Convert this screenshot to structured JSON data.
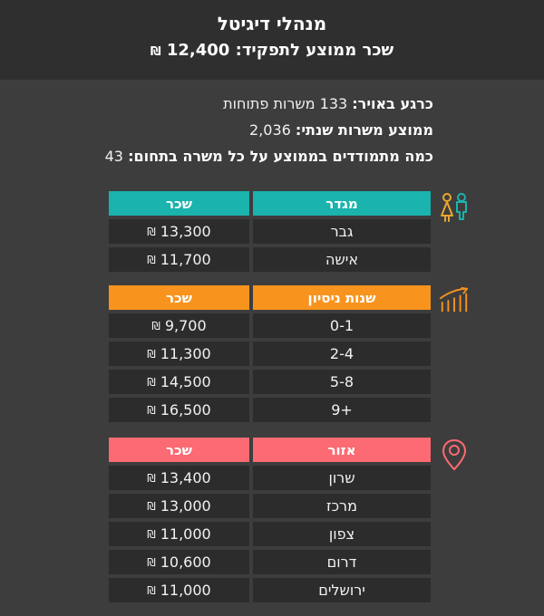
{
  "header": {
    "title": "מנהלי דיגיטל",
    "subtitle_label": "שכר ממוצע לתפקיד:",
    "subtitle_value": "12,400",
    "currency": "₪"
  },
  "stats": {
    "lines": [
      {
        "label": "כרגע באויר:",
        "value": "133 משרות פתוחות"
      },
      {
        "label": "ממוצע משרות שנתי:",
        "value": "2,036"
      },
      {
        "label": "כמה מתמודדים בממוצע על כל משרה בתחום:",
        "value": "43"
      }
    ]
  },
  "tables": [
    {
      "name": "salary-by-gender-table",
      "icon": "male-female-icon",
      "accent": "#1ab3ad",
      "col_category": "מגדר",
      "col_salary": "שכר",
      "rows": [
        {
          "category": "גבר",
          "salary": "13,300"
        },
        {
          "category": "אישה",
          "salary": "11,700"
        }
      ]
    },
    {
      "name": "salary-by-experience-table",
      "icon": "growth-chart-icon",
      "accent": "#f8941e",
      "col_category": "שנות ניסיון",
      "col_salary": "שכר",
      "rows": [
        {
          "category": "0-1",
          "salary": "9,700"
        },
        {
          "category": "2-4",
          "salary": "11,300"
        },
        {
          "category": "5-8",
          "salary": "14,500"
        },
        {
          "category": "9+",
          "salary": "16,500"
        }
      ]
    },
    {
      "name": "salary-by-region-table",
      "icon": "location-pin-icon",
      "accent": "#fc6a73",
      "col_category": "אזור",
      "col_salary": "שכר",
      "rows": [
        {
          "category": "שרון",
          "salary": "13,400"
        },
        {
          "category": "מרכז",
          "salary": "13,000"
        },
        {
          "category": "צפון",
          "salary": "11,000"
        },
        {
          "category": "דרום",
          "salary": "10,600"
        },
        {
          "category": "ירושלים",
          "salary": "11,000"
        }
      ]
    }
  ],
  "colors": {
    "top_band_bg": "#2f2f2f",
    "page_bg": "#3d3d3d",
    "cell_bg": "#2c2c2c",
    "teal_accent": "#1ab3ad",
    "orange_accent": "#f8941e",
    "pink_accent": "#fc6a73",
    "female_icon_color": "#e8a82e",
    "text_color": "#f2f2f2"
  },
  "chart_data": [
    {
      "type": "table",
      "title": "מגדר",
      "columns": [
        "מגדר",
        "שכר"
      ],
      "rows": [
        [
          "גבר",
          13300
        ],
        [
          "אישה",
          11700
        ]
      ],
      "currency": "ILS"
    },
    {
      "type": "table",
      "title": "שנות ניסיון",
      "columns": [
        "שנות ניסיון",
        "שכר"
      ],
      "rows": [
        [
          "0-1",
          9700
        ],
        [
          "2-4",
          11300
        ],
        [
          "5-8",
          14500
        ],
        [
          "9+",
          16500
        ]
      ],
      "currency": "ILS"
    },
    {
      "type": "table",
      "title": "אזור",
      "columns": [
        "אזור",
        "שכר"
      ],
      "rows": [
        [
          "שרון",
          13400
        ],
        [
          "מרכז",
          13000
        ],
        [
          "צפון",
          11000
        ],
        [
          "דרום",
          10600
        ],
        [
          "ירושלים",
          11000
        ]
      ],
      "currency": "ILS"
    }
  ]
}
